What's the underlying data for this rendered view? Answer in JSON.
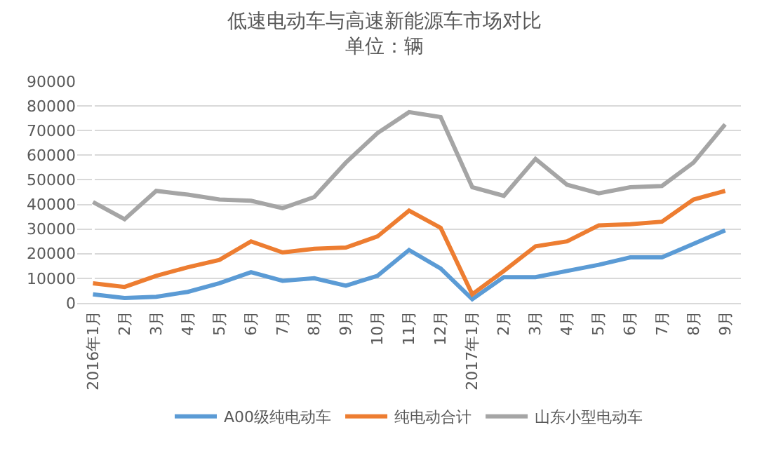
{
  "chart_data": {
    "type": "line",
    "title": "低速电动车与高速新能源车市场对比",
    "subtitle": "单位：辆",
    "categories": [
      "2016年1月",
      "2月",
      "3月",
      "4月",
      "5月",
      "6月",
      "7月",
      "8月",
      "9月",
      "10月",
      "11月",
      "12月",
      "2017年1月",
      "2月",
      "3月",
      "4月",
      "5月",
      "6月",
      "7月",
      "8月",
      "9月"
    ],
    "series": [
      {
        "name": "A00级纯电动车",
        "color": "#5b9bd5",
        "values": [
          3500,
          2000,
          2500,
          4500,
          8000,
          12500,
          9000,
          10000,
          7000,
          11000,
          21500,
          14000,
          1500,
          10500,
          10500,
          13000,
          15500,
          18500,
          18500,
          24000,
          29500
        ]
      },
      {
        "name": "纯电动合计",
        "color": "#ed7d31",
        "values": [
          8000,
          6500,
          11000,
          14500,
          17500,
          25000,
          20500,
          22000,
          22500,
          27000,
          37500,
          30500,
          3500,
          13000,
          23000,
          25000,
          31500,
          32000,
          33000,
          42000,
          45500
        ]
      },
      {
        "name": "山东小型电动车",
        "color": "#a5a5a5",
        "values": [
          41000,
          34000,
          45500,
          44000,
          42000,
          41500,
          38500,
          43000,
          57000,
          69000,
          77500,
          75500,
          47000,
          43500,
          58500,
          48000,
          44500,
          47000,
          47500,
          57000,
          72500
        ]
      }
    ],
    "ylim": [
      0,
      90000
    ],
    "yticks": [
      0,
      10000,
      20000,
      30000,
      40000,
      50000,
      60000,
      70000,
      80000,
      90000
    ],
    "grid": "y",
    "legend": "bottom",
    "marker": "none",
    "line_style": "solid"
  }
}
